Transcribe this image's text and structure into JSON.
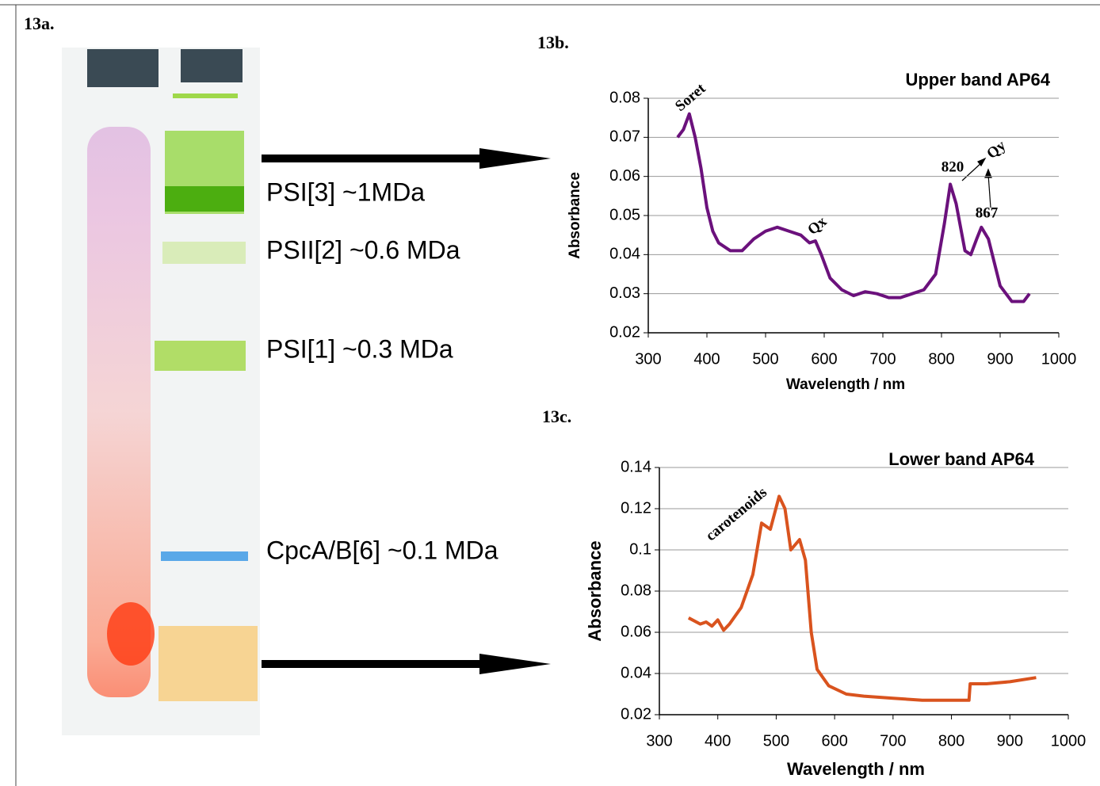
{
  "gel": {
    "label": "13a.",
    "bands": [
      "PSI[3] ~1MDa",
      "PSII[2] ~0.6 MDa",
      "PSI[1] ~0.3 MDa",
      "CpcA/B[6] ~0.1 MDa"
    ]
  },
  "chart_data": [
    {
      "type": "line",
      "panel_label": "13b.",
      "title": "Upper band AP64",
      "x_label": "Wavelength / nm",
      "y_label": "Absorbance",
      "annotations": [
        "Soret",
        "Qx",
        "820",
        "Qy",
        "867"
      ],
      "xlim": [
        300,
        1000
      ],
      "xticks": [
        300,
        400,
        500,
        600,
        700,
        800,
        900,
        1000
      ],
      "ylim": [
        0.02,
        0.08
      ],
      "yticks": [
        0.02,
        0.03,
        0.04,
        0.05,
        0.06,
        0.07,
        0.08
      ],
      "grid": true,
      "x": [
        350,
        360,
        370,
        380,
        390,
        400,
        410,
        420,
        440,
        460,
        480,
        500,
        520,
        540,
        560,
        575,
        585,
        595,
        610,
        630,
        650,
        670,
        690,
        710,
        730,
        750,
        770,
        790,
        805,
        815,
        825,
        840,
        850,
        860,
        868,
        880,
        900,
        920,
        940,
        950
      ],
      "series": [
        {
          "name": "Upper band AP64",
          "color": "#6b117c",
          "values": [
            0.07,
            0.072,
            0.076,
            0.07,
            0.062,
            0.052,
            0.046,
            0.043,
            0.041,
            0.041,
            0.044,
            0.046,
            0.047,
            0.046,
            0.045,
            0.043,
            0.0435,
            0.04,
            0.034,
            0.031,
            0.0295,
            0.0305,
            0.03,
            0.029,
            0.029,
            0.03,
            0.031,
            0.035,
            0.048,
            0.058,
            0.053,
            0.041,
            0.04,
            0.044,
            0.047,
            0.044,
            0.032,
            0.028,
            0.028,
            0.03
          ]
        }
      ]
    },
    {
      "type": "line",
      "panel_label": "13c.",
      "title": "Lower band AP64",
      "x_label": "Wavelength / nm",
      "y_label": "Absorbance",
      "annotations": [
        "carotenoids"
      ],
      "xlim": [
        300,
        1000
      ],
      "xticks": [
        300,
        400,
        500,
        600,
        700,
        800,
        900,
        1000
      ],
      "ylim": [
        0.02,
        0.14
      ],
      "yticks": [
        0.02,
        0.04,
        0.06,
        0.08,
        0.1,
        0.12,
        0.14
      ],
      "grid": true,
      "x": [
        350,
        370,
        380,
        390,
        400,
        410,
        420,
        440,
        460,
        475,
        490,
        505,
        515,
        525,
        540,
        550,
        560,
        570,
        590,
        620,
        650,
        700,
        750,
        800,
        830,
        832,
        860,
        900,
        945
      ],
      "series": [
        {
          "name": "Lower band AP64",
          "color": "#d9531e",
          "values": [
            0.067,
            0.064,
            0.065,
            0.063,
            0.066,
            0.061,
            0.064,
            0.072,
            0.088,
            0.113,
            0.11,
            0.126,
            0.12,
            0.1,
            0.105,
            0.095,
            0.06,
            0.042,
            0.034,
            0.03,
            0.029,
            0.028,
            0.027,
            0.027,
            0.027,
            0.035,
            0.035,
            0.036,
            0.038
          ]
        }
      ]
    }
  ]
}
